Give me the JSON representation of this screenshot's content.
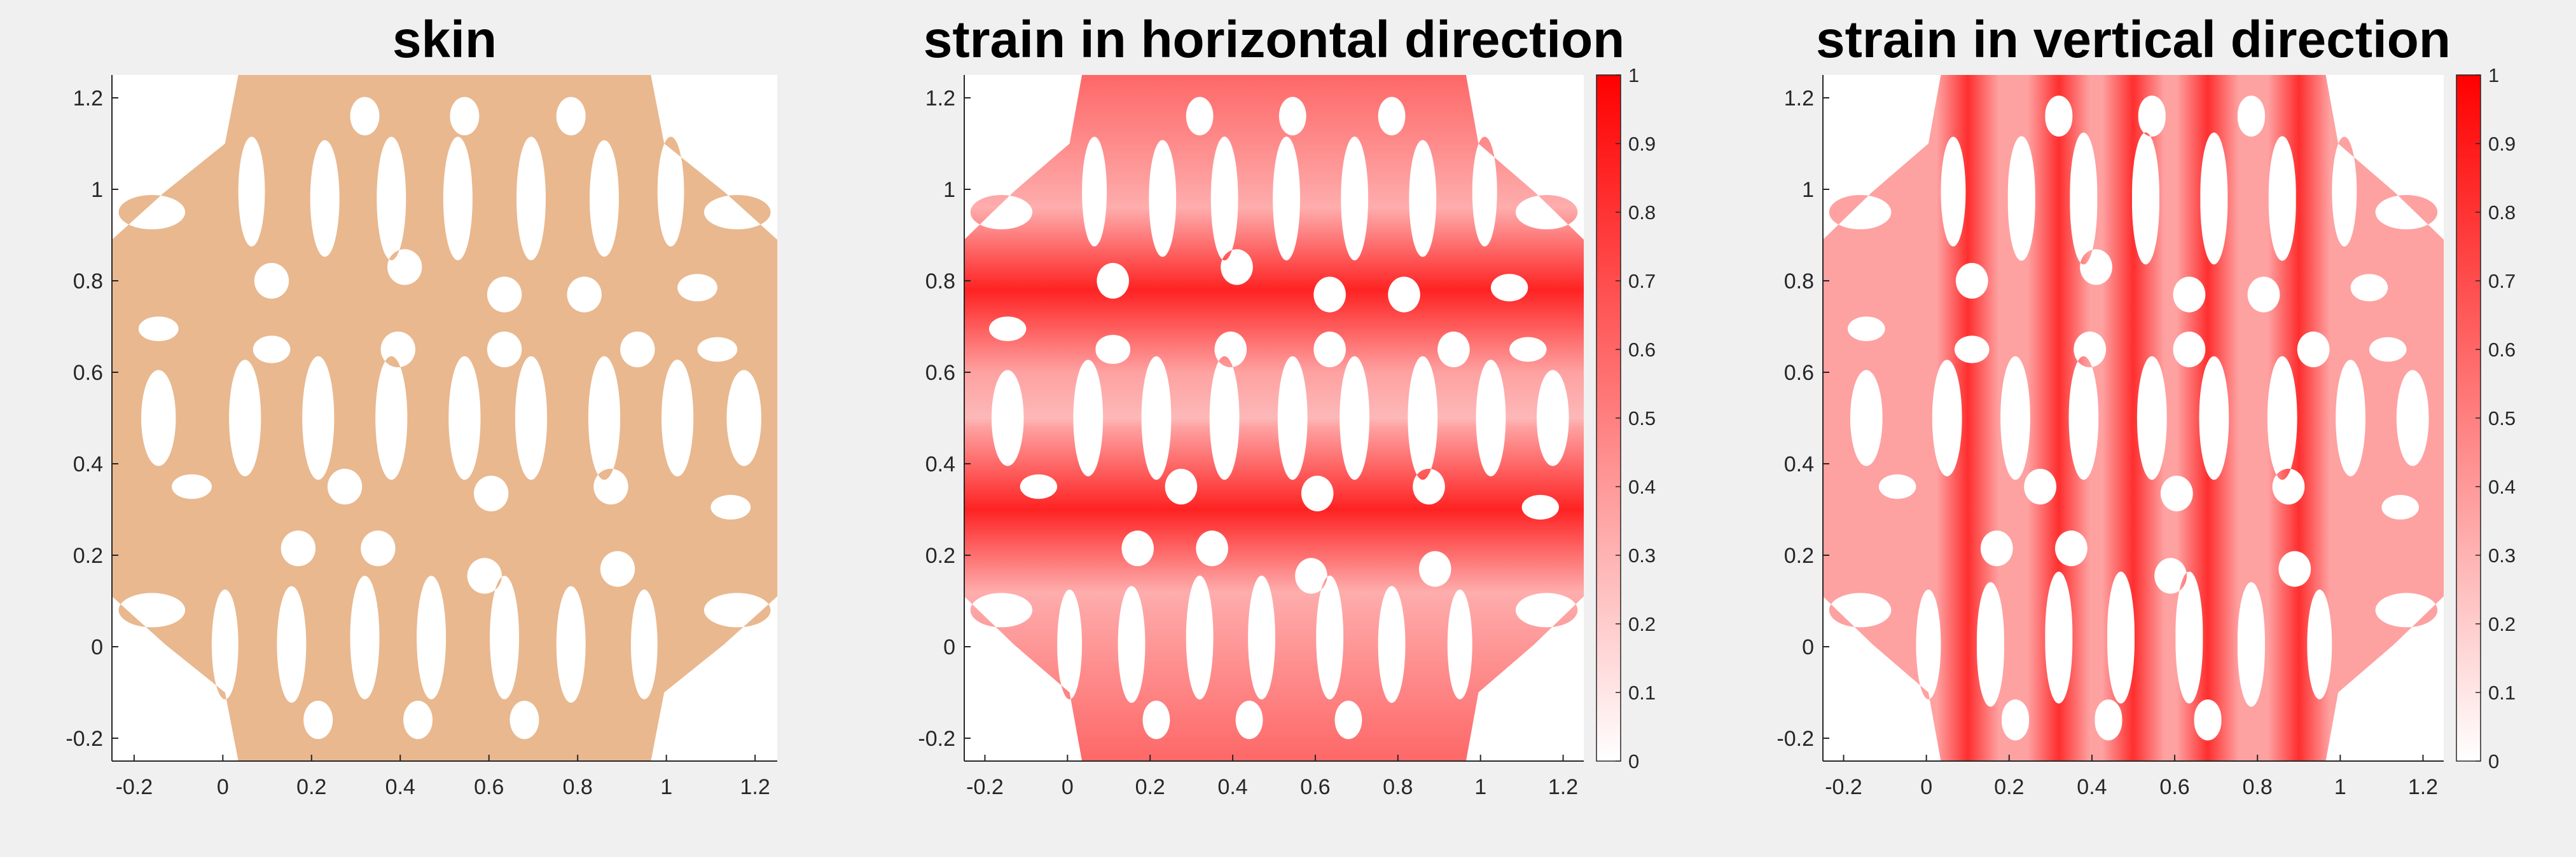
{
  "chart_data": [
    {
      "type": "heatmap",
      "title": "skin",
      "xlabel": "",
      "ylabel": "",
      "xlim": [
        -0.25,
        1.25
      ],
      "ylim": [
        -0.25,
        1.25
      ],
      "xticks": [
        -0.2,
        0,
        0.2,
        0.4,
        0.6,
        0.8,
        1,
        1.2
      ],
      "yticks": [
        -0.2,
        0,
        0.2,
        0.4,
        0.6,
        0.8,
        1,
        1.2
      ],
      "fill_color": "#e9b88f",
      "colorbar": false
    },
    {
      "type": "heatmap",
      "title": "strain in horizontal direction",
      "xlabel": "",
      "ylabel": "",
      "xlim": [
        -0.25,
        1.25
      ],
      "ylim": [
        -0.25,
        1.25
      ],
      "xticks": [
        -0.2,
        0,
        0.2,
        0.4,
        0.6,
        0.8,
        1,
        1.2
      ],
      "yticks": [
        -0.2,
        0,
        0.2,
        0.4,
        0.6,
        0.8,
        1,
        1.2
      ],
      "colormap": [
        "#ffffff",
        "#ff0000"
      ],
      "colorbar": true,
      "clim": [
        0,
        1
      ],
      "colorbar_ticks": [
        0,
        0.1,
        0.2,
        0.3,
        0.4,
        0.5,
        0.6,
        0.7,
        0.8,
        0.9,
        1
      ],
      "high_strain_bands_y": [
        0.78,
        0.3
      ],
      "high_strain_orientation": "horizontal"
    },
    {
      "type": "heatmap",
      "title": "strain in vertical direction",
      "xlabel": "",
      "ylabel": "",
      "xlim": [
        -0.25,
        1.25
      ],
      "ylim": [
        -0.25,
        1.25
      ],
      "xticks": [
        -0.2,
        0,
        0.2,
        0.4,
        0.6,
        0.8,
        1,
        1.2
      ],
      "yticks": [
        -0.2,
        0,
        0.2,
        0.4,
        0.6,
        0.8,
        1,
        1.2
      ],
      "colormap": [
        "#ffffff",
        "#ff0000"
      ],
      "colorbar": true,
      "clim": [
        0,
        1
      ],
      "colorbar_ticks": [
        0,
        0.1,
        0.2,
        0.3,
        0.4,
        0.5,
        0.6,
        0.7,
        0.8,
        0.9,
        1
      ],
      "high_strain_bands_x": [
        0.1,
        0.32,
        0.5,
        0.68,
        0.9
      ],
      "high_strain_orientation": "vertical"
    }
  ]
}
